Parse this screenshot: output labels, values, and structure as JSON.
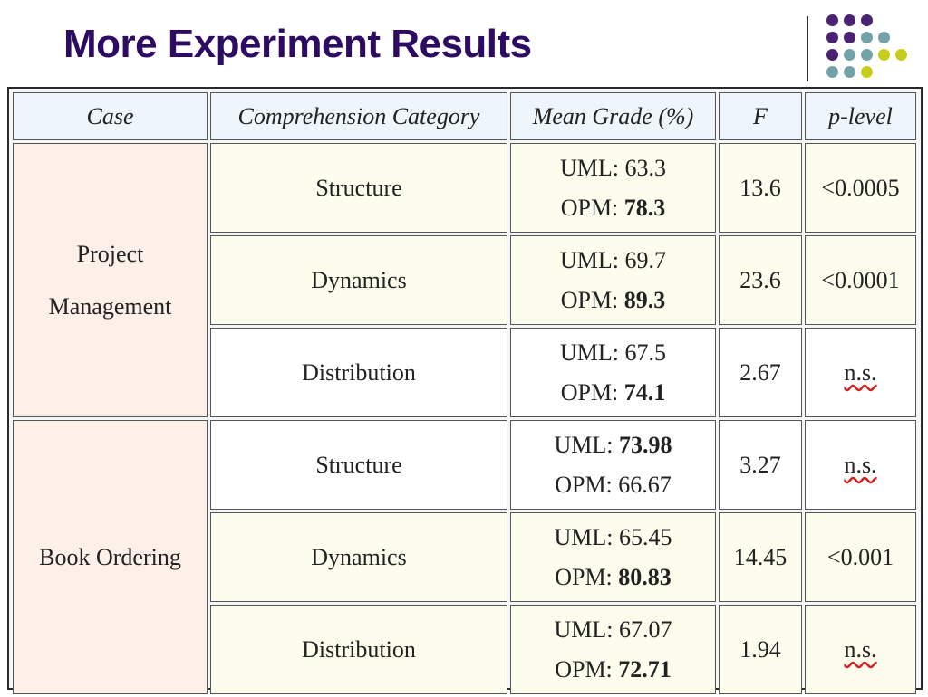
{
  "slide": {
    "title": "More Experiment Results"
  },
  "decor": {
    "colors": {
      "purple": "#4a2272",
      "teal": "#72a3a8",
      "olive": "#c8cc1c",
      "title": "#2d0b63"
    }
  },
  "table": {
    "headers": [
      "Case",
      "Comprehension Category",
      "Mean Grade (%)",
      "F",
      "p-level"
    ],
    "cases": [
      {
        "name_line1": "Project",
        "name_line2": "Management",
        "rows": [
          {
            "category": "Structure",
            "uml_label": "UML: ",
            "uml_value": "63.3",
            "opm_label": "OPM: ",
            "opm_value": "78.3",
            "bold": "opm",
            "f": "13.6",
            "p": "<0.0005"
          },
          {
            "category": "Dynamics",
            "uml_label": "UML: ",
            "uml_value": "69.7",
            "opm_label": "OPM: ",
            "opm_value": "89.3",
            "bold": "opm",
            "f": "23.6",
            "p": "<0.0001"
          },
          {
            "category": "Distribution",
            "uml_label": "UML: ",
            "uml_value": "67.5",
            "opm_label": "OPM: ",
            "opm_value": "74.1",
            "bold": "opm",
            "f": "2.67",
            "p": "n.s."
          }
        ]
      },
      {
        "name_line1": "Book Ordering",
        "name_line2": "",
        "rows": [
          {
            "category": "Structure",
            "uml_label": "UML: ",
            "uml_value": "73.98",
            "opm_label": "OPM: ",
            "opm_value": "66.67",
            "bold": "uml",
            "f": "3.27",
            "p": "n.s."
          },
          {
            "category": "Dynamics",
            "uml_label": "UML: ",
            "uml_value": "65.45",
            "opm_label": "OPM: ",
            "opm_value": "80.83",
            "bold": "opm",
            "f": "14.45",
            "p": "<0.001"
          },
          {
            "category": "Distribution",
            "uml_label": "UML: ",
            "uml_value": "67.07",
            "opm_label": "OPM: ",
            "opm_value": "72.71",
            "bold": "opm",
            "f": "1.94",
            "p": "n.s."
          }
        ]
      }
    ]
  }
}
